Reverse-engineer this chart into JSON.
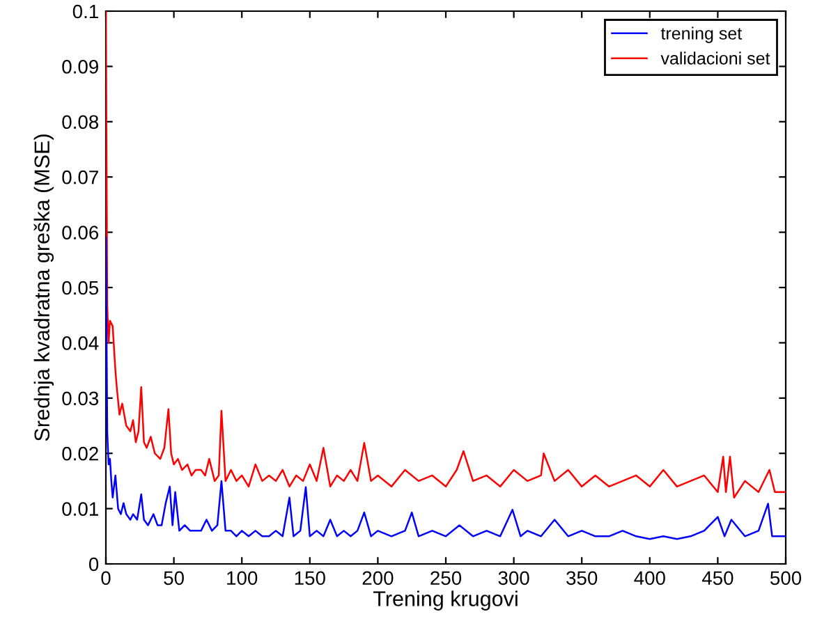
{
  "chart_data": {
    "type": "line",
    "xlabel": "Trening krugovi",
    "ylabel": "Srednja kvadratna greška (MSE)",
    "xlim": [
      0,
      500
    ],
    "ylim": [
      0,
      0.1
    ],
    "xticks": [
      0,
      50,
      100,
      150,
      200,
      250,
      300,
      350,
      400,
      450,
      500
    ],
    "yticks": [
      0,
      0.01,
      0.02,
      0.03,
      0.04,
      0.05,
      0.06,
      0.07,
      0.08,
      0.09,
      0.1
    ],
    "grid": false,
    "legend": "top right",
    "marker": "none",
    "line_style": "solid",
    "series": [
      {
        "name": "trening set",
        "color": "#0000ff",
        "x": [
          0,
          1,
          2,
          3,
          4,
          5,
          7,
          9,
          11,
          13,
          15,
          18,
          20,
          23,
          26,
          28,
          31,
          35,
          38,
          41,
          44,
          47,
          49,
          51,
          54,
          58,
          62,
          66,
          70,
          74,
          78,
          82,
          85,
          88,
          92,
          96,
          100,
          105,
          110,
          115,
          120,
          125,
          130,
          135,
          138,
          143,
          147,
          150,
          155,
          160,
          165,
          170,
          175,
          180,
          185,
          190,
          195,
          200,
          210,
          220,
          225,
          230,
          240,
          250,
          260,
          270,
          280,
          290,
          299,
          305,
          310,
          320,
          330,
          340,
          350,
          360,
          370,
          380,
          390,
          400,
          410,
          420,
          430,
          440,
          450,
          455,
          460,
          470,
          480,
          487,
          490,
          500
        ],
        "values": [
          0.059,
          0.024,
          0.018,
          0.019,
          0.015,
          0.012,
          0.016,
          0.01,
          0.009,
          0.011,
          0.009,
          0.008,
          0.009,
          0.008,
          0.0126,
          0.008,
          0.007,
          0.009,
          0.007,
          0.007,
          0.011,
          0.014,
          0.007,
          0.013,
          0.006,
          0.007,
          0.006,
          0.006,
          0.006,
          0.008,
          0.006,
          0.007,
          0.015,
          0.006,
          0.006,
          0.005,
          0.006,
          0.005,
          0.006,
          0.005,
          0.005,
          0.006,
          0.005,
          0.012,
          0.005,
          0.006,
          0.0139,
          0.005,
          0.006,
          0.005,
          0.008,
          0.005,
          0.006,
          0.005,
          0.006,
          0.0093,
          0.005,
          0.006,
          0.005,
          0.006,
          0.0093,
          0.005,
          0.006,
          0.005,
          0.007,
          0.005,
          0.006,
          0.005,
          0.0098,
          0.005,
          0.006,
          0.005,
          0.008,
          0.005,
          0.006,
          0.005,
          0.005,
          0.006,
          0.005,
          0.0045,
          0.005,
          0.0045,
          0.005,
          0.006,
          0.0085,
          0.005,
          0.008,
          0.005,
          0.006,
          0.0109,
          0.005,
          0.005
        ]
      },
      {
        "name": "validacioni set",
        "color": "#ff0000",
        "x": [
          0,
          1,
          2,
          3,
          5,
          7,
          8,
          10,
          12,
          15,
          18,
          20,
          22,
          24,
          26,
          28,
          30,
          33,
          36,
          40,
          43,
          46,
          48,
          50,
          53,
          56,
          60,
          63,
          66,
          70,
          73,
          76,
          80,
          83,
          85,
          88,
          92,
          96,
          100,
          105,
          110,
          115,
          120,
          125,
          130,
          135,
          140,
          145,
          150,
          155,
          160,
          165,
          170,
          175,
          180,
          185,
          190,
          195,
          200,
          210,
          220,
          230,
          240,
          250,
          258,
          263,
          270,
          280,
          290,
          300,
          310,
          320,
          322,
          330,
          340,
          350,
          360,
          370,
          380,
          390,
          400,
          410,
          420,
          430,
          440,
          450,
          454,
          456,
          459,
          462,
          470,
          480,
          488,
          492,
          500
        ],
        "values": [
          0.1,
          0.0466,
          0.04,
          0.044,
          0.043,
          0.035,
          0.032,
          0.027,
          0.029,
          0.025,
          0.024,
          0.026,
          0.022,
          0.024,
          0.032,
          0.022,
          0.021,
          0.023,
          0.02,
          0.019,
          0.021,
          0.028,
          0.02,
          0.018,
          0.019,
          0.017,
          0.018,
          0.016,
          0.017,
          0.017,
          0.016,
          0.019,
          0.015,
          0.016,
          0.0277,
          0.015,
          0.017,
          0.015,
          0.016,
          0.014,
          0.018,
          0.015,
          0.016,
          0.015,
          0.017,
          0.014,
          0.016,
          0.015,
          0.018,
          0.015,
          0.021,
          0.014,
          0.016,
          0.015,
          0.017,
          0.015,
          0.0219,
          0.015,
          0.016,
          0.014,
          0.017,
          0.015,
          0.016,
          0.014,
          0.017,
          0.0204,
          0.015,
          0.016,
          0.014,
          0.017,
          0.015,
          0.016,
          0.02,
          0.015,
          0.017,
          0.014,
          0.016,
          0.014,
          0.015,
          0.016,
          0.014,
          0.017,
          0.014,
          0.015,
          0.016,
          0.013,
          0.0194,
          0.013,
          0.0194,
          0.012,
          0.015,
          0.013,
          0.017,
          0.013,
          0.013
        ]
      }
    ]
  }
}
